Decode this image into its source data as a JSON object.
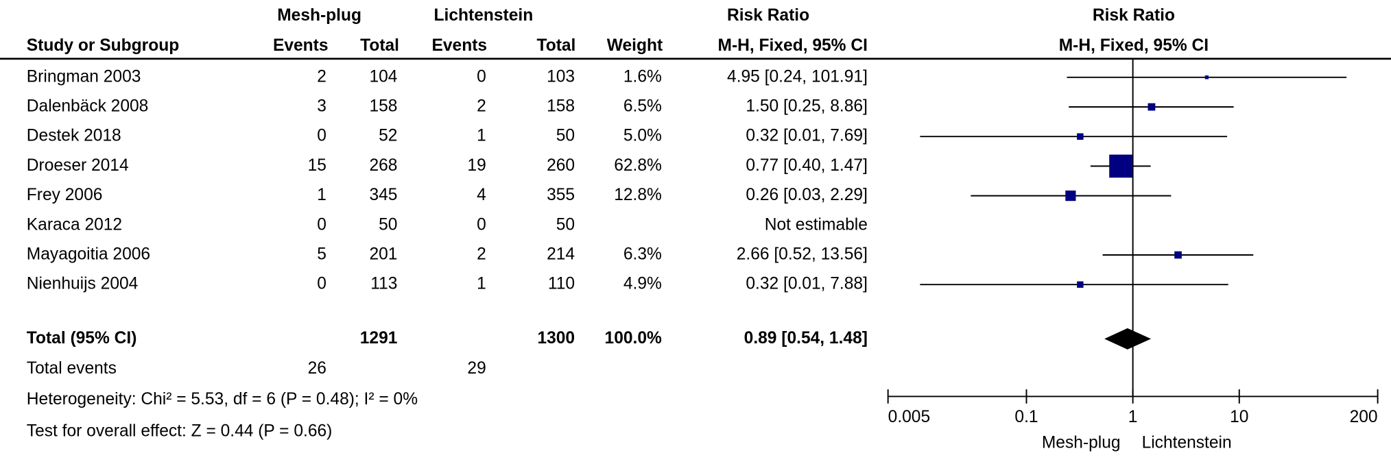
{
  "chart_data": {
    "type": "forest",
    "group_headers": {
      "experimental": "Mesh-plug",
      "control": "Lichtenstein",
      "table_effect": "Risk Ratio",
      "plot_effect": "Risk Ratio"
    },
    "column_headers": {
      "study": "Study or Subgroup",
      "events1": "Events",
      "total1": "Total",
      "events2": "Events",
      "total2": "Total",
      "weight": "Weight",
      "table_method": "M-H, Fixed, 95% CI",
      "plot_method": "M-H, Fixed, 95% CI"
    },
    "studies": [
      {
        "study": "Bringman 2003",
        "events1": 2,
        "total1": 104,
        "events2": 0,
        "total2": 103,
        "weight": 1.6,
        "weight_label": "1.6%",
        "ci_label": "4.95 [0.24, 101.91]",
        "rr": 4.95,
        "lower": 0.24,
        "upper": 101.91
      },
      {
        "study": "Dalenbäck 2008",
        "events1": 3,
        "total1": 158,
        "events2": 2,
        "total2": 158,
        "weight": 6.5,
        "weight_label": "6.5%",
        "ci_label": "1.50 [0.25, 8.86]",
        "rr": 1.5,
        "lower": 0.25,
        "upper": 8.86
      },
      {
        "study": "Destek 2018",
        "events1": 0,
        "total1": 52,
        "events2": 1,
        "total2": 50,
        "weight": 5.0,
        "weight_label": "5.0%",
        "ci_label": "0.32 [0.01, 7.69]",
        "rr": 0.32,
        "lower": 0.01,
        "upper": 7.69
      },
      {
        "study": "Droeser 2014",
        "events1": 15,
        "total1": 268,
        "events2": 19,
        "total2": 260,
        "weight": 62.8,
        "weight_label": "62.8%",
        "ci_label": "0.77 [0.40, 1.47]",
        "rr": 0.77,
        "lower": 0.4,
        "upper": 1.47
      },
      {
        "study": "Frey 2006",
        "events1": 1,
        "total1": 345,
        "events2": 4,
        "total2": 355,
        "weight": 12.8,
        "weight_label": "12.8%",
        "ci_label": "0.26 [0.03, 2.29]",
        "rr": 0.26,
        "lower": 0.03,
        "upper": 2.29
      },
      {
        "study": "Karaca 2012",
        "events1": 0,
        "total1": 50,
        "events2": 0,
        "total2": 50,
        "ci_label": "Not estimable"
      },
      {
        "study": "Mayagoitia 2006",
        "events1": 5,
        "total1": 201,
        "events2": 2,
        "total2": 214,
        "weight": 6.3,
        "weight_label": "6.3%",
        "ci_label": "2.66 [0.52, 13.56]",
        "rr": 2.66,
        "lower": 0.52,
        "upper": 13.56
      },
      {
        "study": "Nienhuijs 2004",
        "events1": 0,
        "total1": 113,
        "events2": 1,
        "total2": 110,
        "weight": 4.9,
        "weight_label": "4.9%",
        "ci_label": "0.32 [0.01, 7.88]",
        "rr": 0.32,
        "lower": 0.01,
        "upper": 7.88
      }
    ],
    "total": {
      "study": "Total (95% CI)",
      "total1": 1291,
      "total2": 1300,
      "weight_label": "100.0%",
      "ci_label": "0.89 [0.54, 1.48]",
      "rr": 0.89,
      "lower": 0.54,
      "upper": 1.48
    },
    "total_events": {
      "label": "Total events",
      "events1": 26,
      "events2": 29
    },
    "heterogeneity": "Heterogeneity: Chi² = 5.53, df = 6 (P = 0.48); I² = 0%",
    "overall_effect": "Test for overall effect: Z = 0.44 (P = 0.66)",
    "x_log": true,
    "xlim": [
      0.005,
      200
    ],
    "xticks": [
      0.005,
      0.1,
      1,
      10,
      200
    ],
    "favours_left": "Mesh-plug",
    "favours_right": "Lichtenstein",
    "marker_color": "#000080",
    "diamond_color": "#000000"
  }
}
